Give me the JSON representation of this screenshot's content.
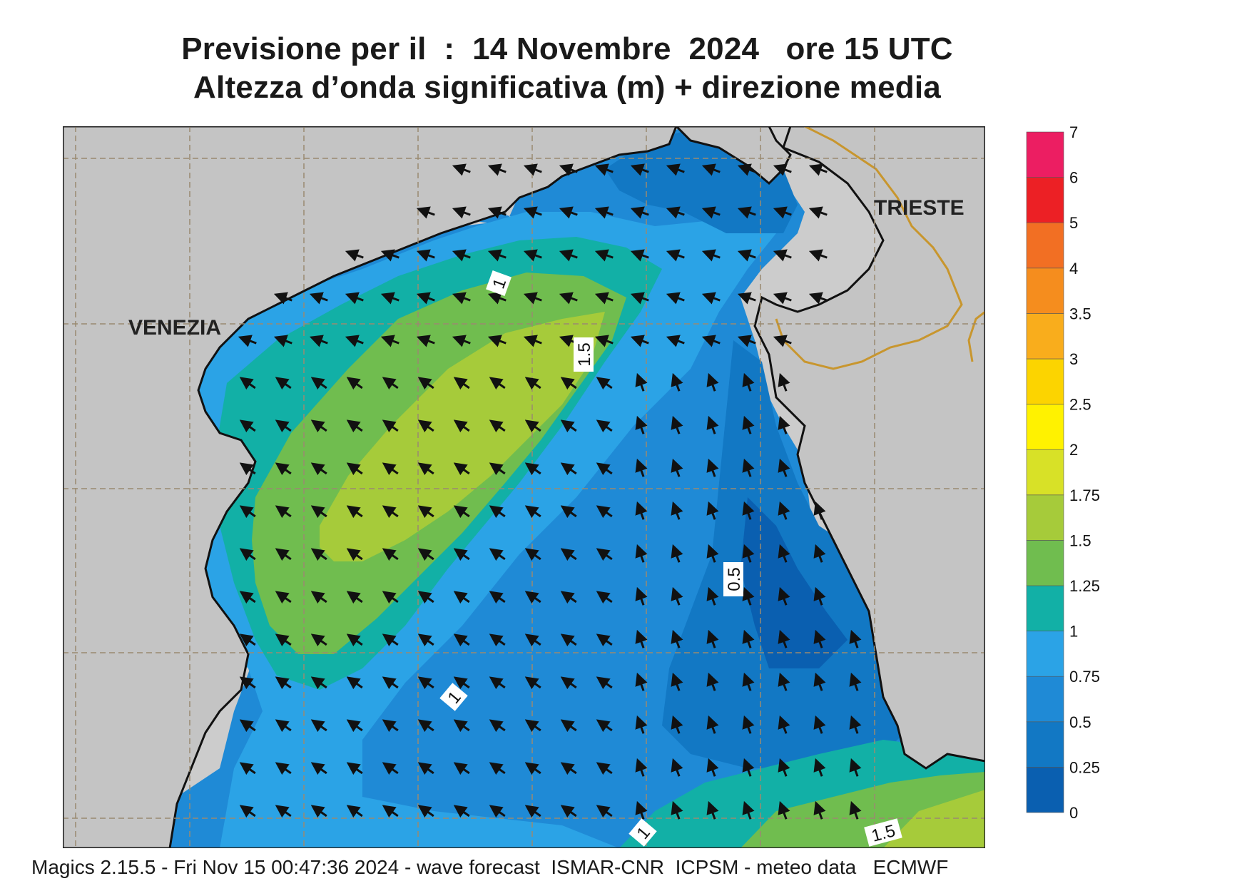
{
  "header": {
    "title_line1": "Previsione per il  :  14 Novembre  2024   ore 15 UTC",
    "title_line2": "Altezza d’onda significativa (m) + direzione media"
  },
  "map": {
    "place_labels": [
      "VENEZIA",
      "TRIESTE"
    ],
    "contour_labels": [
      "1",
      "1.5",
      "0.5",
      "1",
      "1",
      "1.5"
    ],
    "land_color": "#cccccc",
    "coast_color": "#111111",
    "border_color": "#c8962e",
    "grid_color": "#9a8a70",
    "arrow_color": "#111111",
    "arrow_direction": "toward-southwest"
  },
  "legend": {
    "ticks": [
      "0",
      "0.25",
      "0.5",
      "0.75",
      "1",
      "1.25",
      "1.5",
      "1.75",
      "2",
      "2.5",
      "3",
      "3.5",
      "4",
      "5",
      "6",
      "7"
    ],
    "colors": [
      "#0a5fb0",
      "#1278c4",
      "#1f8ad6",
      "#2ba3e6",
      "#12b0a6",
      "#70bd4f",
      "#a6cb3a",
      "#d8e127",
      "#fff200",
      "#fcd400",
      "#f9ad1c",
      "#f58d1e",
      "#f26f23",
      "#ec2025",
      "#ec1e62"
    ]
  },
  "footer": {
    "text": "Magics 2.15.5 - Fri Nov 15 00:47:36 2024 - wave forecast  ISMAR-CNR  ICPSM - meteo data   ECMWF"
  }
}
